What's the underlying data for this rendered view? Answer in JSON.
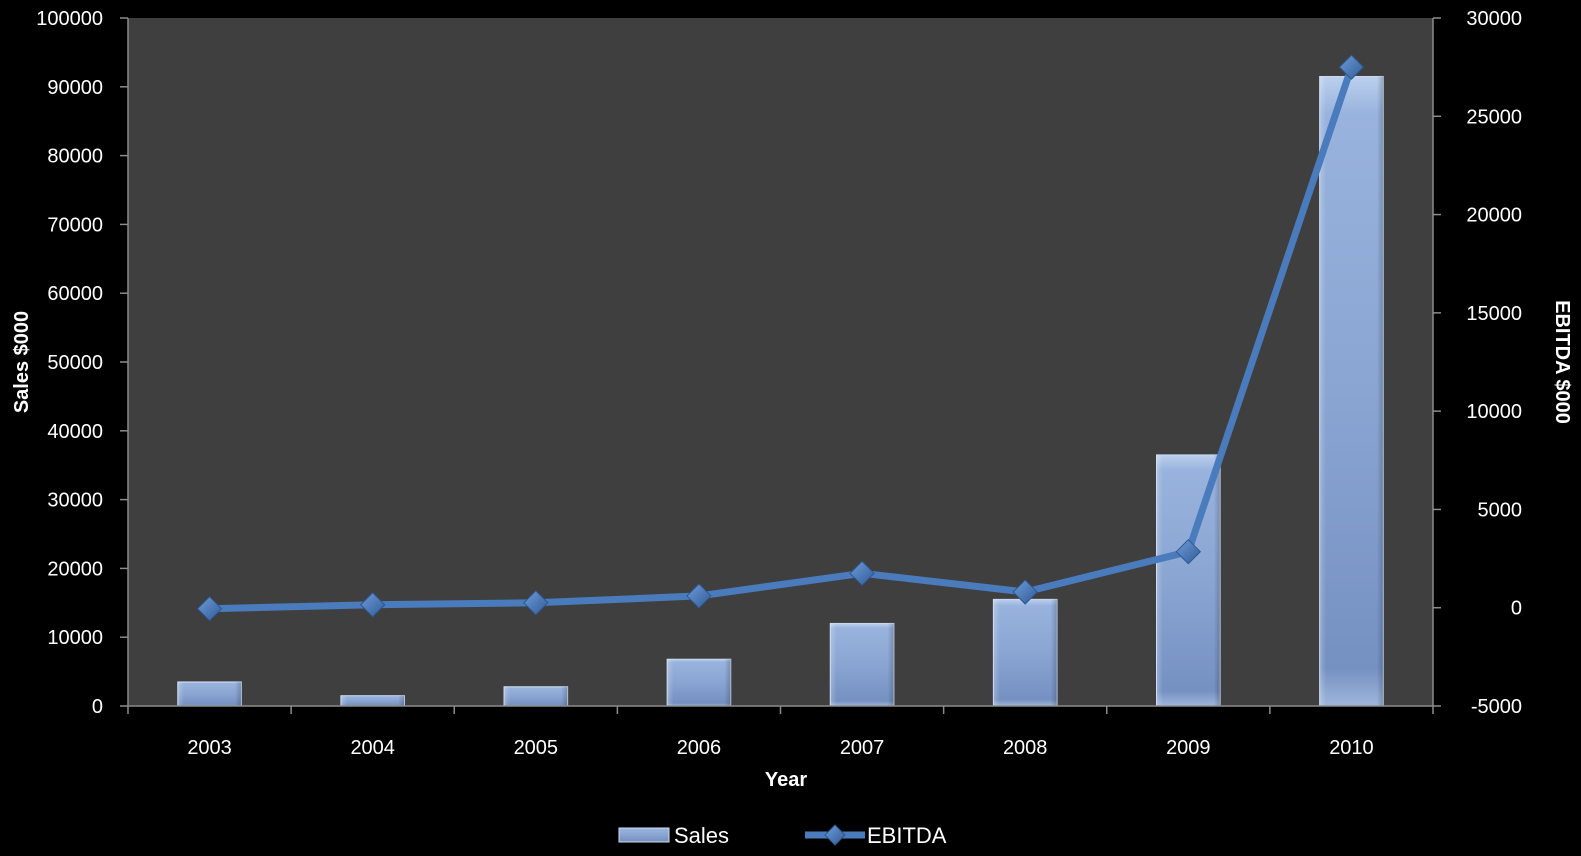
{
  "chart_data": {
    "type": "bar",
    "categories": [
      "2003",
      "2004",
      "2005",
      "2006",
      "2007",
      "2008",
      "2009",
      "2010"
    ],
    "xlabel": "Year",
    "ylabel": "Sales $000",
    "y2label": "EBITDA  $000",
    "ylim": [
      0,
      100000
    ],
    "y2lim": [
      -5000,
      30000
    ],
    "yticks": [
      "0",
      "10000",
      "20000",
      "30000",
      "40000",
      "50000",
      "60000",
      "70000",
      "80000",
      "90000",
      "100000"
    ],
    "y2ticks": [
      "-5000",
      "0",
      "5000",
      "10000",
      "15000",
      "20000",
      "25000",
      "30000"
    ],
    "grid": false,
    "legend_position": "bottom",
    "series": [
      {
        "name": "Sales",
        "type": "bar",
        "axis": "left",
        "color": "#8ea9d6",
        "values": [
          3500,
          1500,
          2800,
          6800,
          12000,
          15500,
          36500,
          91500
        ]
      },
      {
        "name": "EBITDA",
        "type": "line",
        "axis": "right",
        "color": "#4a7bbd",
        "marker": "diamond",
        "values": [
          -50,
          150,
          250,
          600,
          1750,
          800,
          2850,
          27500
        ]
      }
    ]
  },
  "colors": {
    "background": "#000000",
    "plot_area": "#3f3f3f",
    "text": "#ffffff"
  }
}
